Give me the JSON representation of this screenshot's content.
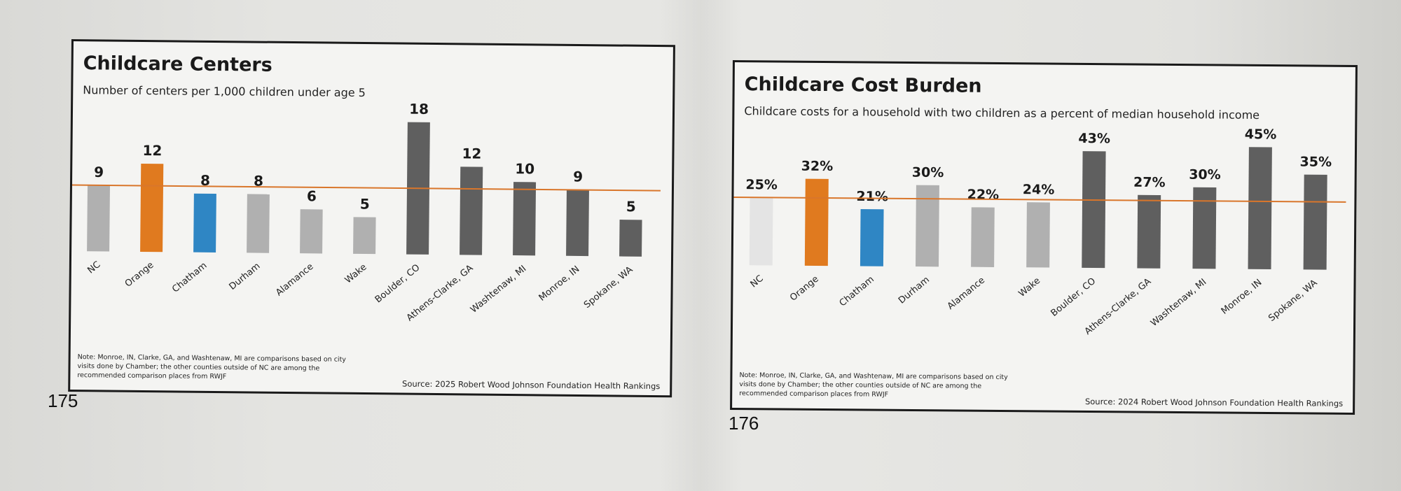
{
  "pages": {
    "left_number": "175",
    "right_number": "176"
  },
  "chart_data": [
    {
      "type": "bar",
      "title": "Childcare Centers",
      "subtitle": "Number of centers per 1,000 children under age 5",
      "categories": [
        "NC",
        "Orange",
        "Chatham",
        "Durham",
        "Alamance",
        "Wake",
        "Boulder, CO",
        "Athens-Clarke, GA",
        "Washtenaw, MI",
        "Monroe, IN",
        "Spokane, WA"
      ],
      "values": [
        9,
        12,
        8,
        8,
        6,
        5,
        18,
        12,
        10,
        9,
        5
      ],
      "data_labels": [
        "9",
        "12",
        "8",
        "8",
        "6",
        "5",
        "18",
        "12",
        "10",
        "9",
        "5"
      ],
      "bar_colors": [
        "#b0b0b0",
        "#e07a1f",
        "#2f86c4",
        "#b0b0b0",
        "#b0b0b0",
        "#b0b0b0",
        "#5f5f5f",
        "#5f5f5f",
        "#5f5f5f",
        "#5f5f5f",
        "#5f5f5f"
      ],
      "reference_line": {
        "value": 9,
        "color": "#d9762b"
      },
      "ylim": [
        0,
        20
      ],
      "xlabel": "",
      "ylabel": "",
      "grid": false,
      "note": "Note: Monroe, IN, Clarke, GA, and Washtenaw, MI are comparisons based on city visits done by Chamber; the other counties outside of NC are among the recommended comparison places from RWJF",
      "source": "Source: 2025 Robert Wood Johnson Foundation Health Rankings"
    },
    {
      "type": "bar",
      "title": "Childcare Cost Burden",
      "subtitle": "Childcare costs for a household with two children as a percent of median household income",
      "categories": [
        "NC",
        "Orange",
        "Chatham",
        "Durham",
        "Alamance",
        "Wake",
        "Boulder, CO",
        "Athens-Clarke, GA",
        "Washtenaw, MI",
        "Monroe, IN",
        "Spokane, WA"
      ],
      "values": [
        25,
        32,
        21,
        30,
        22,
        24,
        43,
        27,
        30,
        45,
        35
      ],
      "data_labels": [
        "25%",
        "32%",
        "21%",
        "30%",
        "22%",
        "24%",
        "43%",
        "27%",
        "30%",
        "45%",
        "35%"
      ],
      "bar_colors": [
        "#e4e4e4",
        "#e07a1f",
        "#2f86c4",
        "#b0b0b0",
        "#b0b0b0",
        "#b0b0b0",
        "#5f5f5f",
        "#5f5f5f",
        "#5f5f5f",
        "#5f5f5f",
        "#5f5f5f"
      ],
      "reference_line": {
        "value": 25,
        "color": "#d9762b"
      },
      "ylim": [
        0,
        50
      ],
      "xlabel": "",
      "ylabel": "",
      "grid": false,
      "note": "Note: Monroe, IN, Clarke, GA, and Washtenaw, MI are comparisons based on city visits done by Chamber; the other counties outside of NC are among the recommended comparison places from RWJF",
      "source": "Source: 2024 Robert Wood Johnson Foundation Health Rankings"
    }
  ]
}
